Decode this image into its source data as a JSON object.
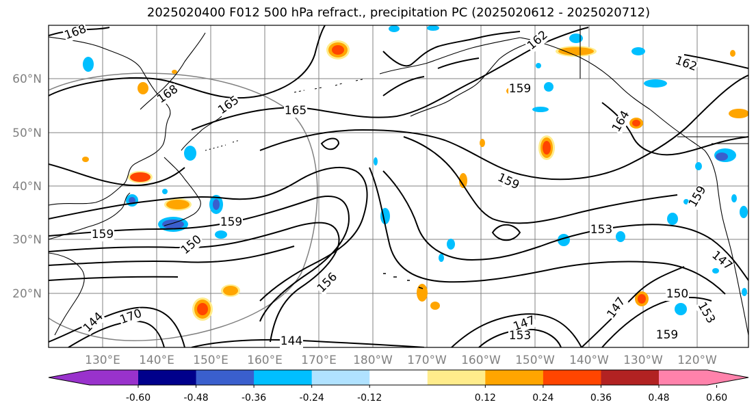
{
  "title": "2025020400 F012 500 hPa refract., precipitation PC (2025020612 - 2025020712)",
  "lat_labels": [
    "60°N",
    "50°N",
    "40°N",
    "30°N",
    "20°N"
  ],
  "lon_labels": [
    "130°E",
    "140°E",
    "150°E",
    "160°E",
    "170°E",
    "180°W",
    "170°W",
    "160°W",
    "150°W",
    "140°W",
    "130°W",
    "120°W"
  ],
  "contour_labels": [
    "168",
    "168",
    "165",
    "165",
    "162",
    "162",
    "159",
    "159",
    "159",
    "159",
    "159",
    "159",
    "156",
    "153",
    "153",
    "150",
    "150",
    "147",
    "147",
    "147",
    "144",
    "144",
    "170",
    "153",
    "164"
  ],
  "colorbar": {
    "ticks": [
      "-0.60",
      "-0.48",
      "-0.36",
      "-0.24",
      "-0.12",
      "0.12",
      "0.24",
      "0.36",
      "0.48",
      "0.60"
    ],
    "colors": [
      "#9932cc",
      "#00008b",
      "#3a5fcd",
      "#00bfff",
      "#b0e2ff",
      "#ffffff",
      "#ffec8b",
      "#ffa500",
      "#ff4500",
      "#b22222",
      "#ff82ab"
    ]
  },
  "colors": {
    "grid": "#808080",
    "coast": "#000000",
    "contour": "#000000"
  }
}
